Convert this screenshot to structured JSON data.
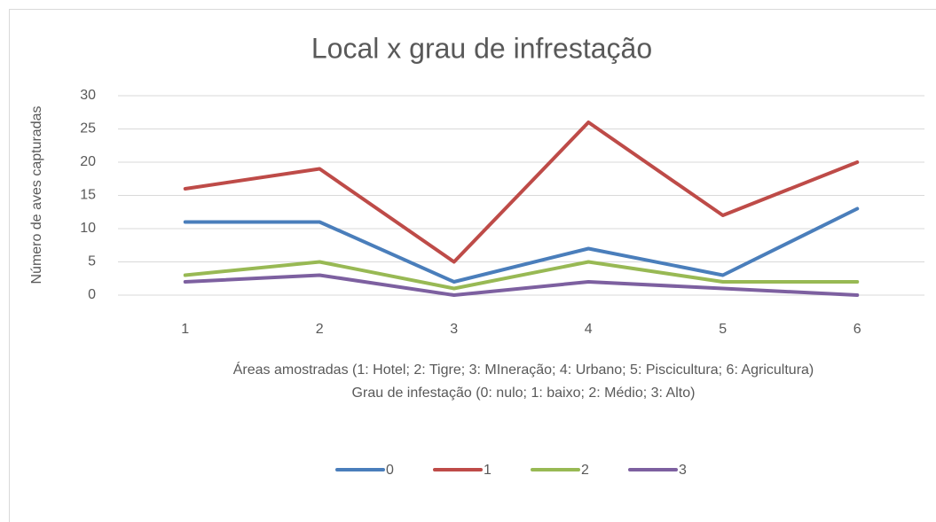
{
  "chart_data": {
    "type": "line",
    "title": "Local x grau de infrestação",
    "y_label": "Número de aves capturadas",
    "x_label": [
      "Áreas amostradas (1: Hotel; 2: Tigre; 3: MIneração; 4: Urbano; 5: Piscicultura; 6: Agricultura)",
      "Grau de infestação  (0: nulo; 1: baixo; 2: Médio; 3: Alto)"
    ],
    "categories": [
      "1",
      "2",
      "3",
      "4",
      "5",
      "6"
    ],
    "series": [
      {
        "name": "0",
        "color": "#4a7ebb",
        "values": [
          11,
          11,
          2,
          7,
          3,
          13
        ]
      },
      {
        "name": "1",
        "color": "#be4b48",
        "values": [
          16,
          19,
          5,
          26,
          12,
          20
        ]
      },
      {
        "name": "2",
        "color": "#98b954",
        "values": [
          3,
          5,
          1,
          5,
          2,
          2
        ]
      },
      {
        "name": "3",
        "color": "#7d60a0",
        "values": [
          2,
          3,
          0,
          2,
          1,
          0
        ]
      }
    ],
    "ylim": [
      0,
      30
    ],
    "yticks": [
      0,
      5,
      10,
      15,
      20,
      25,
      30
    ],
    "grid": true,
    "legend": "bottom"
  }
}
